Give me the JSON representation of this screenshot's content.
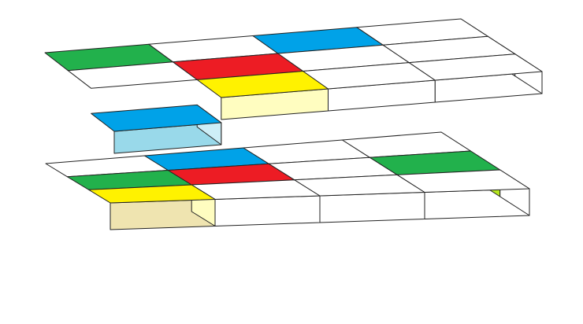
{
  "figure": {
    "description_colors": {
      "white": "#ffffff",
      "green": "#22b14c",
      "red": "#ed1c24",
      "blue": "#00a2e8",
      "yellow": "#fff200"
    },
    "side_colors": {
      "white": "#ffffff",
      "green": "#b5e61d",
      "red": "#f7a1a5",
      "blue": "#99d9ea",
      "yellow": "#fffdc0"
    },
    "front_side_colors_lower_yellow": "#efe4b0",
    "front_side_colors_upper_blue": "#99d9ea",
    "right_side_colors_upper_blue": "#cdeef7",
    "layers": [
      {
        "name": "top-layer",
        "grid": [
          [
            "green",
            "white",
            "blue",
            "white"
          ],
          [
            "white",
            "red",
            "white",
            "white"
          ],
          [
            "blue",
            "yellow",
            "white",
            "white"
          ]
        ],
        "raised": [
          [
            2,
            0
          ]
        ]
      },
      {
        "name": "bottom-layer",
        "grid": [
          [
            "white",
            "blue",
            "white",
            "white"
          ],
          [
            "green",
            "red",
            "white",
            "green"
          ],
          [
            "yellow",
            "white",
            "white",
            "white"
          ]
        ],
        "raised": [
          [
            2,
            0
          ]
        ]
      }
    ]
  }
}
